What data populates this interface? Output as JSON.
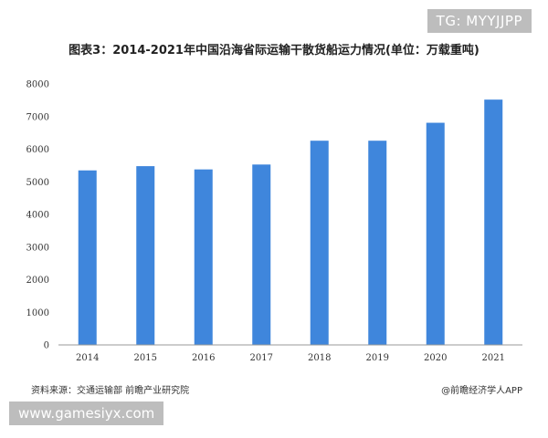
{
  "title": "图表3：2014-2021年中国沿海省际运输干散货船运力情况(单位：万载重吨)",
  "source": "资料来源：交通运输部 前瞻产业研究院",
  "credit": "@前瞻经济学人APP",
  "overlays": {
    "top_right": "TG: MYYJJPP",
    "bottom_left": "www.gamesiyx.com"
  },
  "colors": {
    "bar": "#3f86dc",
    "axis": "#999999",
    "badge": "#bdbdbd"
  },
  "chart_data": {
    "type": "bar",
    "categories": [
      "2014",
      "2015",
      "2016",
      "2017",
      "2018",
      "2019",
      "2020",
      "2021"
    ],
    "values": [
      5350,
      5480,
      5380,
      5530,
      6260,
      6260,
      6810,
      7520
    ],
    "yticks": [
      0,
      1000,
      2000,
      3000,
      4000,
      5000,
      6000,
      7000,
      8000
    ],
    "ylim": [
      0,
      8000
    ],
    "grid": false,
    "legend": "none",
    "xlabel": "",
    "ylabel": ""
  }
}
